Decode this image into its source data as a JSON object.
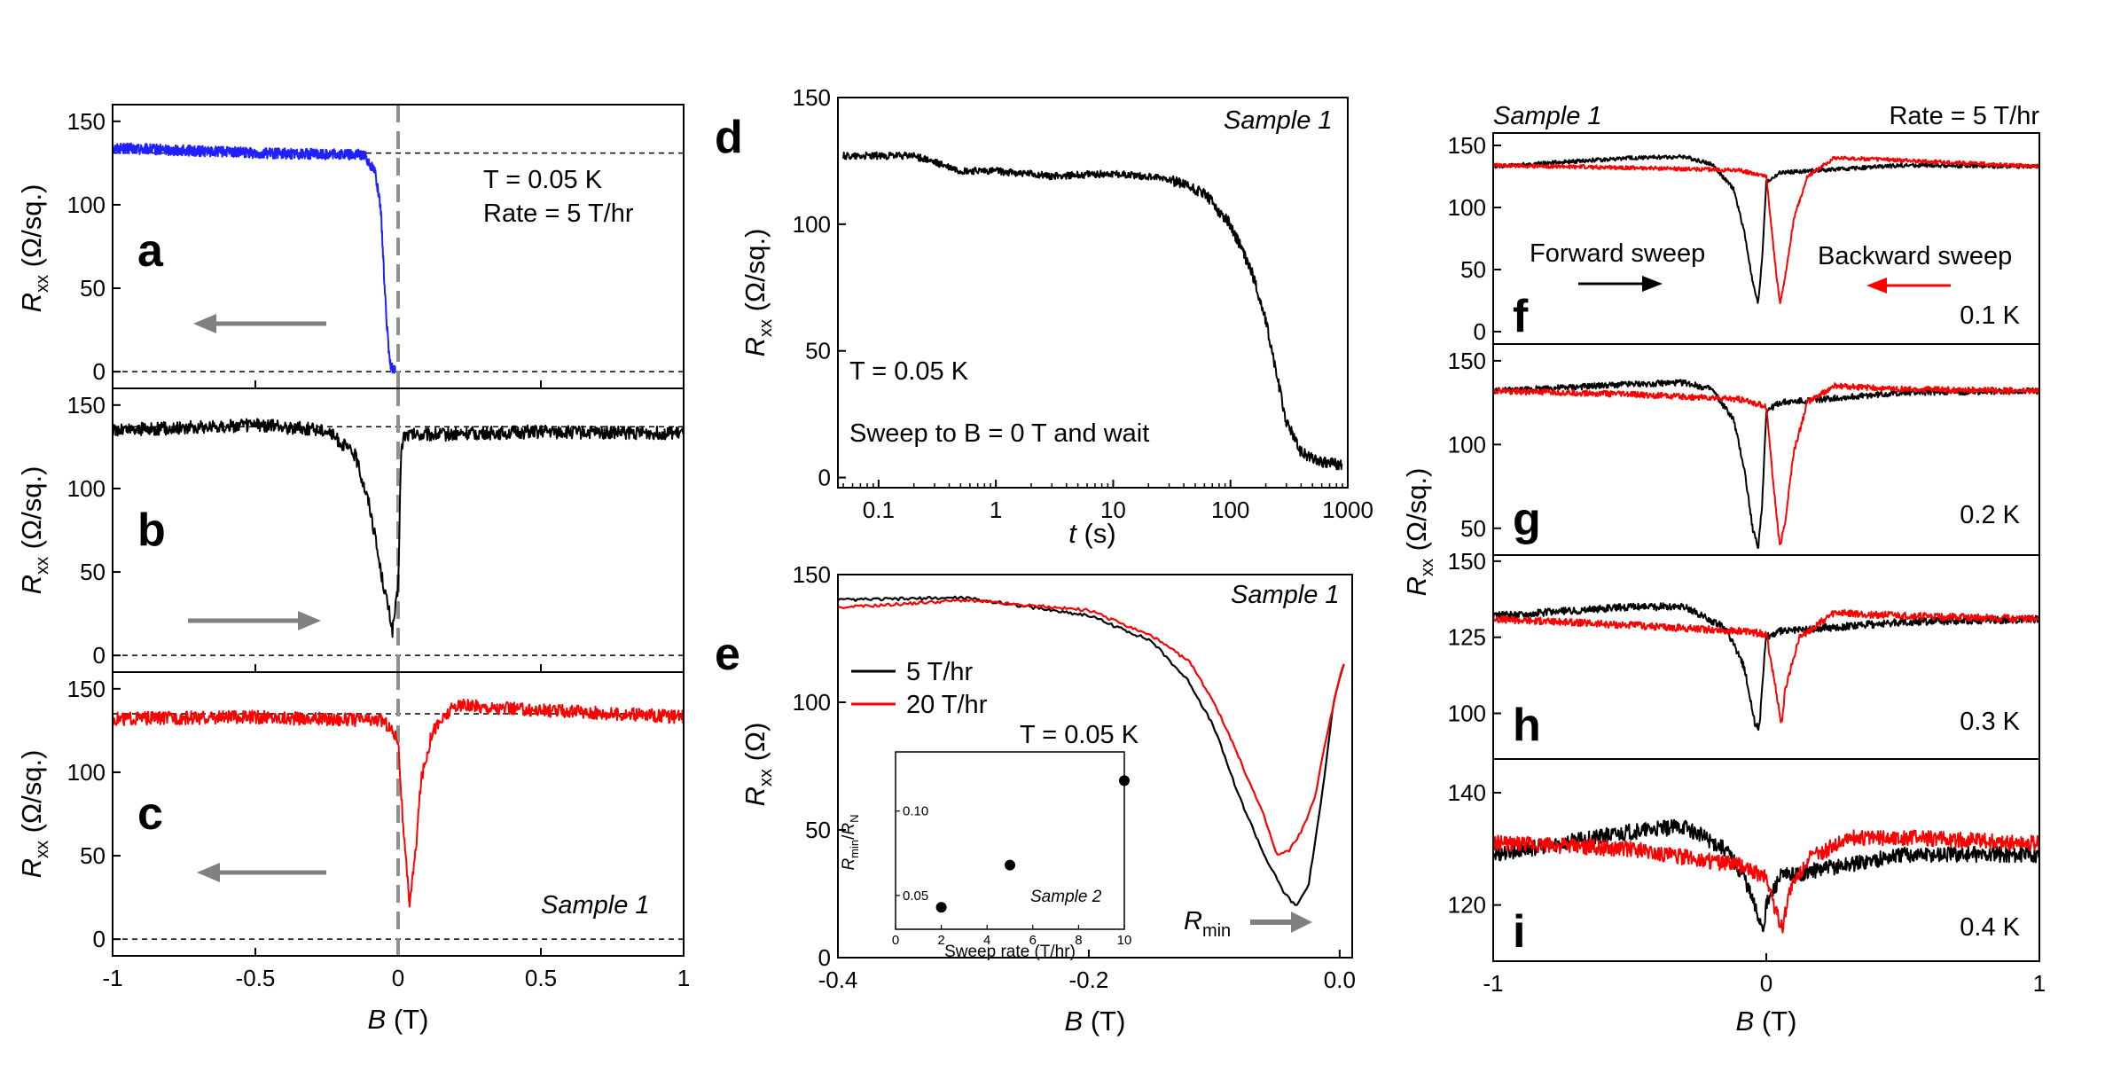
{
  "figure": {
    "panels": {
      "a": {
        "letter": "a",
        "temp": "T = 0.05 K",
        "rate": "Rate = 5 T/hr"
      },
      "b": {
        "letter": "b"
      },
      "c": {
        "letter": "c",
        "sample": "Sample 1"
      },
      "d": {
        "letter": "d",
        "sample": "Sample 1",
        "temp": "T = 0.05 K",
        "sweep_note": "Sweep to B = 0 T and wait"
      },
      "e": {
        "letter": "e",
        "sample": "Sample 1",
        "temp": "T = 0.05 K",
        "rmin": "Rmin",
        "inset": {
          "sample": "Sample 2",
          "xlabel": "Sweep rate (T/hr)",
          "ylabel": "Rmin/RN"
        }
      },
      "f": {
        "letter": "f",
        "temp": "0.1 K",
        "sample": "Sample 1",
        "rate": "Rate = 5 T/hr",
        "forward": "Forward sweep",
        "backward": "Backward sweep"
      },
      "g": {
        "letter": "g",
        "temp": "0.2 K"
      },
      "h": {
        "letter": "h",
        "temp": "0.3 K"
      },
      "i": {
        "letter": "i",
        "temp": "0.4 K"
      }
    },
    "axes": {
      "abc_x": "B (T)",
      "abc_y": "Rxx (Ω/sq.)",
      "d_x": "t (s)",
      "d_y": "Rxx (Ω/sq.)",
      "e_x": "B (T)",
      "e_y": "Rxx (Ω)",
      "fi_x": "B (T)",
      "fi_y": "Rxx (Ω/sq.)"
    }
  },
  "chart_data": [
    {
      "panel": "a",
      "type": "line",
      "xlabel": "B (T)",
      "ylabel": "Rxx (Ω/sq.)",
      "xlim": [
        -1.0,
        1.0
      ],
      "ylim": [
        -10,
        160
      ],
      "xticks": [
        -1.0,
        -0.5,
        0.0,
        0.5,
        1.0
      ],
      "yticks": [
        0,
        50,
        100,
        150
      ],
      "series": [
        {
          "color": "#1f1fff",
          "points": [
            [
              -1.0,
              134
            ],
            [
              -0.5,
              131
            ],
            [
              -0.12,
              130
            ],
            [
              -0.08,
              120
            ],
            [
              -0.06,
              95
            ],
            [
              -0.05,
              60
            ],
            [
              -0.04,
              30
            ],
            [
              -0.03,
              5
            ],
            [
              -0.01,
              0
            ]
          ]
        }
      ],
      "reference_lines": {
        "rn": 131,
        "zero": 0,
        "b_zero": 0
      },
      "arrow": "left"
    },
    {
      "panel": "b",
      "type": "line",
      "xlabel": "B (T)",
      "ylabel": "Rxx (Ω/sq.)",
      "xlim": [
        -1.0,
        1.0
      ],
      "ylim": [
        -10,
        160
      ],
      "xticks": [
        -1.0,
        -0.5,
        0.0,
        0.5,
        1.0
      ],
      "yticks": [
        0,
        50,
        100,
        150
      ],
      "series": [
        {
          "color": "#000000",
          "points": [
            [
              -1.0,
              135
            ],
            [
              -0.5,
              138
            ],
            [
              -0.25,
              135
            ],
            [
              -0.15,
              120
            ],
            [
              -0.1,
              90
            ],
            [
              -0.06,
              50
            ],
            [
              -0.03,
              25
            ],
            [
              -0.02,
              15
            ],
            [
              0.0,
              40
            ],
            [
              0.01,
              120
            ],
            [
              0.02,
              132
            ],
            [
              0.5,
              134
            ],
            [
              1.0,
              133
            ]
          ]
        }
      ],
      "reference_lines": {
        "rn": 137,
        "zero": 0,
        "b_zero": 0
      },
      "arrow": "right"
    },
    {
      "panel": "c",
      "type": "line",
      "xlabel": "B (T)",
      "ylabel": "Rxx (Ω/sq.)",
      "xlim": [
        -1.0,
        1.0
      ],
      "ylim": [
        -10,
        160
      ],
      "xticks": [
        -1.0,
        -0.5,
        0.0,
        0.5,
        1.0
      ],
      "yticks": [
        0,
        50,
        100,
        150
      ],
      "series": [
        {
          "color": "#ff0000",
          "points": [
            [
              -1.0,
              132
            ],
            [
              -0.5,
              133
            ],
            [
              -0.05,
              131
            ],
            [
              0.0,
              120
            ],
            [
              0.02,
              60
            ],
            [
              0.04,
              22
            ],
            [
              0.06,
              50
            ],
            [
              0.08,
              95
            ],
            [
              0.12,
              125
            ],
            [
              0.2,
              140
            ],
            [
              0.4,
              138
            ],
            [
              1.0,
              133
            ]
          ]
        }
      ],
      "reference_lines": {
        "rn": 135,
        "zero": 0,
        "b_zero": 0
      },
      "arrow": "left"
    },
    {
      "panel": "d",
      "type": "line",
      "xlabel": "t (s)",
      "ylabel": "Rxx (Ω/sq.)",
      "xscale": "log",
      "xlim": [
        0.045,
        1000
      ],
      "ylim": [
        -4,
        150
      ],
      "xticks": [
        0.1,
        1,
        10,
        100,
        1000
      ],
      "xticklabels": [
        "0.1",
        "1",
        "10",
        "100",
        "1000"
      ],
      "yticks": [
        0,
        50,
        100,
        150
      ],
      "series": [
        {
          "color": "#000000",
          "points": [
            [
              0.05,
              127
            ],
            [
              0.2,
              127
            ],
            [
              0.5,
              121
            ],
            [
              1,
              121
            ],
            [
              3,
              119
            ],
            [
              10,
              120
            ],
            [
              30,
              118
            ],
            [
              60,
              112
            ],
            [
              100,
              100
            ],
            [
              150,
              82
            ],
            [
              200,
              62
            ],
            [
              250,
              40
            ],
            [
              300,
              22
            ],
            [
              400,
              10
            ],
            [
              600,
              6
            ],
            [
              900,
              5
            ]
          ]
        }
      ]
    },
    {
      "panel": "e",
      "type": "line",
      "xlabel": "B (T)",
      "ylabel": "Rxx (Ω)",
      "xlim": [
        -0.4,
        0.01
      ],
      "ylim": [
        0,
        150
      ],
      "xticks": [
        -0.4,
        -0.2,
        0.0
      ],
      "xticklabels": [
        "-0.4",
        "-0.2",
        "0.0"
      ],
      "yticks": [
        0,
        50,
        100,
        150
      ],
      "series": [
        {
          "name": "5 T/hr",
          "color": "#000000",
          "points": [
            [
              -0.4,
              140
            ],
            [
              -0.3,
              141
            ],
            [
              -0.2,
              134
            ],
            [
              -0.15,
              124
            ],
            [
              -0.12,
              108
            ],
            [
              -0.1,
              90
            ],
            [
              -0.08,
              63
            ],
            [
              -0.06,
              40
            ],
            [
              -0.045,
              26
            ],
            [
              -0.035,
              20
            ],
            [
              -0.025,
              28
            ],
            [
              -0.015,
              60
            ],
            [
              -0.005,
              100
            ],
            [
              0.005,
              118
            ]
          ]
        },
        {
          "name": "20 T/hr",
          "color": "#ff0000",
          "points": [
            [
              -0.4,
              137
            ],
            [
              -0.3,
              140
            ],
            [
              -0.2,
              136
            ],
            [
              -0.15,
              126
            ],
            [
              -0.12,
              116
            ],
            [
              -0.1,
              100
            ],
            [
              -0.08,
              78
            ],
            [
              -0.06,
              55
            ],
            [
              -0.05,
              40
            ],
            [
              -0.04,
              42
            ],
            [
              -0.03,
              50
            ],
            [
              -0.02,
              62
            ],
            [
              -0.01,
              88
            ],
            [
              0.0,
              110
            ],
            [
              0.005,
              117
            ]
          ]
        }
      ],
      "inset": {
        "type": "scatter",
        "xlabel": "Sweep rate (T/hr)",
        "ylabel": "Rmin/RN",
        "xlim": [
          0,
          10
        ],
        "ylim": [
          0.03,
          0.135
        ],
        "xticks": [
          0,
          2,
          4,
          6,
          8,
          10
        ],
        "yticks": [
          0.05,
          0.1
        ],
        "yticklabels": [
          "0.05",
          "0.10"
        ],
        "x": [
          2,
          5,
          10
        ],
        "y": [
          0.043,
          0.068,
          0.118
        ]
      }
    },
    {
      "panel": "f",
      "type": "line",
      "xlabel": "B (T)",
      "xlim": [
        -1,
        1
      ],
      "ylim": [
        -10,
        160
      ],
      "yticks": [
        0,
        50,
        100,
        150
      ],
      "series": [
        {
          "name": "Forward sweep",
          "color": "#000000",
          "points": [
            [
              -1,
              133
            ],
            [
              -0.5,
              140
            ],
            [
              -0.3,
              141
            ],
            [
              -0.2,
              135
            ],
            [
              -0.12,
              115
            ],
            [
              -0.08,
              80
            ],
            [
              -0.05,
              40
            ],
            [
              -0.03,
              22
            ],
            [
              -0.015,
              60
            ],
            [
              0.0,
              120
            ],
            [
              0.05,
              128
            ],
            [
              0.5,
              134
            ],
            [
              1,
              133
            ]
          ]
        },
        {
          "name": "Backward sweep",
          "color": "#ff0000",
          "points": [
            [
              -1,
              134
            ],
            [
              -0.5,
              132
            ],
            [
              -0.1,
              130
            ],
            [
              0.0,
              125
            ],
            [
              0.03,
              60
            ],
            [
              0.05,
              22
            ],
            [
              0.07,
              45
            ],
            [
              0.1,
              90
            ],
            [
              0.15,
              125
            ],
            [
              0.25,
              140
            ],
            [
              0.5,
              138
            ],
            [
              1,
              133
            ]
          ]
        }
      ]
    },
    {
      "panel": "g",
      "type": "line",
      "xlabel": "B (T)",
      "xlim": [
        -1,
        1
      ],
      "ylim": [
        34,
        160
      ],
      "yticks": [
        50,
        100,
        150
      ],
      "series": [
        {
          "color": "#000000",
          "points": [
            [
              -1,
              132
            ],
            [
              -0.5,
              136
            ],
            [
              -0.3,
              137
            ],
            [
              -0.2,
              133
            ],
            [
              -0.12,
              115
            ],
            [
              -0.08,
              85
            ],
            [
              -0.05,
              50
            ],
            [
              -0.03,
              38
            ],
            [
              -0.015,
              65
            ],
            [
              0.0,
              120
            ],
            [
              0.05,
              125
            ],
            [
              0.5,
              131
            ],
            [
              1,
              132
            ]
          ]
        },
        {
          "color": "#ff0000",
          "points": [
            [
              -1,
              132
            ],
            [
              -0.5,
              130
            ],
            [
              -0.1,
              127
            ],
            [
              0.0,
              123
            ],
            [
              0.03,
              70
            ],
            [
              0.05,
              38
            ],
            [
              0.07,
              55
            ],
            [
              0.1,
              95
            ],
            [
              0.15,
              125
            ],
            [
              0.25,
              135
            ],
            [
              0.5,
              133
            ],
            [
              1,
              132
            ]
          ]
        }
      ]
    },
    {
      "panel": "h",
      "type": "line",
      "xlabel": "B (T)",
      "xlim": [
        -1,
        1
      ],
      "ylim": [
        85,
        152
      ],
      "yticks": [
        100,
        125,
        150
      ],
      "series": [
        {
          "color": "#000000",
          "points": [
            [
              -1,
              132
            ],
            [
              -0.5,
              135
            ],
            [
              -0.3,
              135
            ],
            [
              -0.15,
              128
            ],
            [
              -0.08,
              115
            ],
            [
              -0.04,
              96
            ],
            [
              -0.025,
              95
            ],
            [
              -0.01,
              115
            ],
            [
              0.0,
              125
            ],
            [
              0.05,
              127
            ],
            [
              0.5,
              130
            ],
            [
              1,
              131
            ]
          ]
        },
        {
          "color": "#ff0000",
          "points": [
            [
              -1,
              131
            ],
            [
              -0.5,
              129
            ],
            [
              -0.1,
              127
            ],
            [
              0.0,
              126
            ],
            [
              0.04,
              105
            ],
            [
              0.055,
              96
            ],
            [
              0.07,
              108
            ],
            [
              0.12,
              125
            ],
            [
              0.25,
              133
            ],
            [
              0.5,
              132
            ],
            [
              1,
              131
            ]
          ]
        }
      ]
    },
    {
      "panel": "i",
      "type": "line",
      "xlabel": "B (T)",
      "xlim": [
        -1,
        1
      ],
      "ylim": [
        110,
        146
      ],
      "xticks": [
        -1,
        0,
        1
      ],
      "yticks": [
        120,
        140
      ],
      "series": [
        {
          "color": "#000000",
          "points": [
            [
              -1,
              129
            ],
            [
              -0.5,
              133
            ],
            [
              -0.3,
              134
            ],
            [
              -0.15,
              130
            ],
            [
              -0.08,
              125
            ],
            [
              -0.03,
              118
            ],
            [
              -0.01,
              116
            ],
            [
              0.0,
              120
            ],
            [
              0.05,
              125
            ],
            [
              0.5,
              129
            ],
            [
              1,
              129
            ]
          ]
        },
        {
          "color": "#ff0000",
          "points": [
            [
              -1,
              131
            ],
            [
              -0.5,
              130
            ],
            [
              -0.1,
              127
            ],
            [
              0.0,
              125
            ],
            [
              0.04,
              118
            ],
            [
              0.06,
              116
            ],
            [
              0.08,
              122
            ],
            [
              0.15,
              128
            ],
            [
              0.3,
              132
            ],
            [
              0.5,
              132
            ],
            [
              1,
              131
            ]
          ]
        }
      ]
    }
  ]
}
